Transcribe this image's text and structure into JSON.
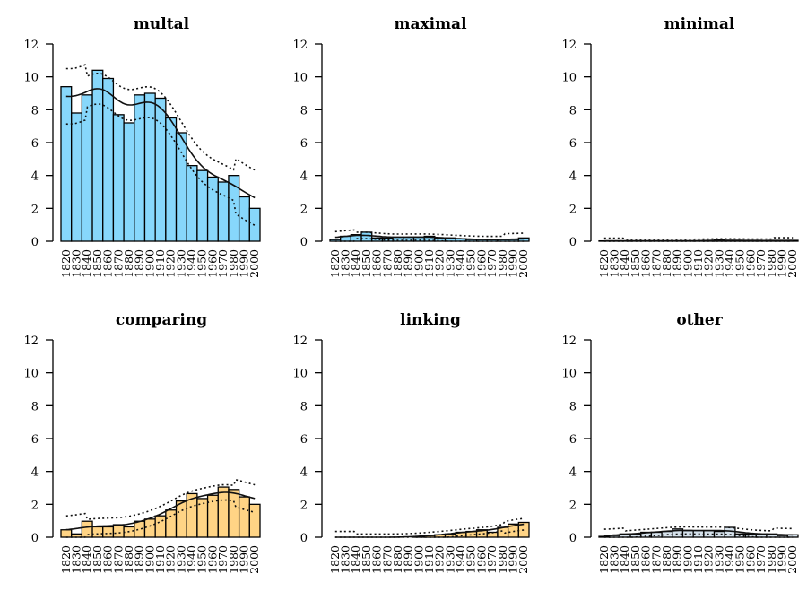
{
  "chart_data": [
    {
      "type": "bar",
      "title": "multal",
      "color": "#87D7FB",
      "categories": [
        "1820",
        "1830",
        "1840",
        "1850",
        "1860",
        "1870",
        "1880",
        "1890",
        "1900",
        "1910",
        "1920",
        "1930",
        "1940",
        "1950",
        "1960",
        "1970",
        "1980",
        "1990",
        "2000"
      ],
      "values": [
        9.4,
        7.8,
        8.9,
        10.4,
        9.9,
        7.7,
        7.2,
        8.9,
        9.0,
        8.7,
        7.5,
        6.6,
        4.6,
        4.3,
        3.9,
        3.6,
        4.0,
        2.7,
        2.0
      ],
      "ylim": [
        0,
        12
      ],
      "yticks": [
        "0",
        "2",
        "4",
        "6",
        "8",
        "10",
        "12"
      ],
      "smoother": true
    },
    {
      "type": "bar",
      "title": "maximal",
      "color": "#87D7FB",
      "categories": [
        "1820",
        "1830",
        "1840",
        "1850",
        "1860",
        "1870",
        "1880",
        "1890",
        "1900",
        "1910",
        "1920",
        "1930",
        "1940",
        "1950",
        "1960",
        "1970",
        "1980",
        "1990",
        "2000"
      ],
      "values": [
        0.1,
        0.3,
        0.4,
        0.55,
        0.2,
        0.2,
        0.25,
        0.25,
        0.25,
        0.3,
        0.2,
        0.2,
        0.15,
        0.1,
        0.1,
        0.1,
        0.1,
        0.1,
        0.2
      ],
      "ylim": [
        0,
        12
      ],
      "yticks": [
        "0",
        "2",
        "4",
        "6",
        "8",
        "10",
        "12"
      ],
      "smoother": true
    },
    {
      "type": "bar",
      "title": "minimal",
      "color": "#87D7FB",
      "categories": [
        "1820",
        "1830",
        "1840",
        "1850",
        "1860",
        "1870",
        "1880",
        "1890",
        "1900",
        "1910",
        "1920",
        "1930",
        "1940",
        "1950",
        "1960",
        "1970",
        "1980",
        "1990",
        "2000"
      ],
      "values": [
        0.02,
        0.02,
        0.02,
        0.02,
        0.02,
        0.02,
        0.02,
        0.02,
        0.02,
        0.02,
        0.03,
        0.1,
        0.05,
        0.04,
        0.04,
        0.04,
        0.04,
        0.04,
        0.05
      ],
      "ylim": [
        0,
        12
      ],
      "yticks": [
        "0",
        "2",
        "4",
        "6",
        "8",
        "10",
        "12"
      ],
      "smoother": true
    },
    {
      "type": "bar",
      "title": "comparing",
      "color": "#FFD485",
      "categories": [
        "1820",
        "1830",
        "1840",
        "1850",
        "1860",
        "1870",
        "1880",
        "1890",
        "1900",
        "1910",
        "1920",
        "1930",
        "1940",
        "1950",
        "1960",
        "1970",
        "1980",
        "1990",
        "2000"
      ],
      "values": [
        0.45,
        0.2,
        0.97,
        0.63,
        0.63,
        0.76,
        0.63,
        0.97,
        1.1,
        1.3,
        1.65,
        2.2,
        2.65,
        2.35,
        2.55,
        3.05,
        2.9,
        2.45,
        2.0
      ],
      "ylim": [
        0,
        12
      ],
      "yticks": [
        "0",
        "2",
        "4",
        "6",
        "8",
        "10",
        "12"
      ],
      "smoother": true
    },
    {
      "type": "bar",
      "title": "linking",
      "color": "#FFD485",
      "categories": [
        "1820",
        "1830",
        "1840",
        "1850",
        "1860",
        "1870",
        "1880",
        "1890",
        "1900",
        "1910",
        "1920",
        "1930",
        "1940",
        "1950",
        "1960",
        "1970",
        "1980",
        "1990",
        "2000"
      ],
      "values": [
        0,
        0,
        0,
        0,
        0,
        0,
        0,
        0,
        0.05,
        0.1,
        0.15,
        0.2,
        0.3,
        0.35,
        0.45,
        0.3,
        0.6,
        0.8,
        0.9
      ],
      "ylim": [
        0,
        12
      ],
      "yticks": [
        "0",
        "2",
        "4",
        "6",
        "8",
        "10",
        "12"
      ],
      "smoother": true
    },
    {
      "type": "bar",
      "title": "other",
      "color": "#D6E2EC",
      "categories": [
        "1820",
        "1830",
        "1840",
        "1850",
        "1860",
        "1870",
        "1880",
        "1890",
        "1900",
        "1910",
        "1920",
        "1930",
        "1940",
        "1950",
        "1960",
        "1970",
        "1980",
        "1990",
        "2000"
      ],
      "values": [
        0.05,
        0.1,
        0.2,
        0.2,
        0.3,
        0.3,
        0.35,
        0.5,
        0.4,
        0.4,
        0.4,
        0.35,
        0.6,
        0.2,
        0.2,
        0.2,
        0.2,
        0.1,
        0.15
      ],
      "ylim": [
        0,
        12
      ],
      "yticks": [
        "0",
        "2",
        "4",
        "6",
        "8",
        "10",
        "12"
      ],
      "smoother": true
    }
  ]
}
